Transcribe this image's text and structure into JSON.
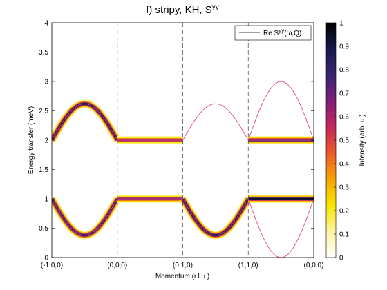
{
  "chart_data": {
    "type": "heatmap",
    "title": "f) stripy, KH, S",
    "title_superscript": "yy",
    "xlabel": "Momentum (r.l.u.)",
    "ylabel": "Energy transfer (meV)",
    "colorbar_label": "Intensity (arb. u.)",
    "ylim": [
      0,
      4
    ],
    "clim": [
      0,
      1
    ],
    "x_ticks": [
      "(-1,0,0)",
      "(0,0,0)",
      "(0,1,0)",
      "(1,1,0)",
      "(0,0,0)"
    ],
    "y_ticks": [
      "0",
      "0.5",
      "1",
      "1.5",
      "2",
      "2.5",
      "3",
      "3.5",
      "4"
    ],
    "colorbar_ticks": [
      "0",
      "0.1",
      "0.2",
      "0.3",
      "0.4",
      "0.5",
      "0.6",
      "0.7",
      "0.8",
      "0.9",
      "1"
    ],
    "legend": {
      "label": "Re S",
      "label_superscript": "yy",
      "label_suffix": "(ω,Q)",
      "placement": "top-right"
    },
    "colormap": [
      "#ffffff",
      "#fff3a0",
      "#f8e700",
      "#f7a300",
      "#ed5a2a",
      "#c6265c",
      "#7e1e78",
      "#3a2470",
      "#151a4a",
      "#000000"
    ],
    "line_color": "#e0457b",
    "segments": [
      {
        "from": "(-1,0,0)",
        "to": "(0,0,0)",
        "upper": {
          "start": 2.0,
          "peak": 2.62,
          "end": 2.0
        },
        "lower": {
          "start": 1.0,
          "min": 0.38,
          "end": 1.0
        },
        "upper_intensity": 0.95,
        "lower_intensity": 0.9
      },
      {
        "from": "(0,0,0)",
        "to": "(0,1,0)",
        "upper": {
          "start": 2.0,
          "peak": 2.0,
          "end": 2.0
        },
        "lower": {
          "start": 1.0,
          "min": 1.0,
          "end": 1.0
        },
        "upper_intensity": 0.7,
        "lower_intensity": 0.75
      },
      {
        "from": "(0,1,0)",
        "to": "(1,1,0)",
        "upper": {
          "start": 2.0,
          "peak": 2.62,
          "end": 2.0
        },
        "lower": {
          "start": 1.0,
          "min": 0.38,
          "end": 1.0
        },
        "upper_intensity": 0.0,
        "lower_intensity": 0.95
      },
      {
        "from": "(1,1,0)",
        "to": "(0,0,0)",
        "upper": {
          "start": 2.0,
          "peak": 3.0,
          "end": 2.0
        },
        "lower": {
          "start": 1.0,
          "min": 0.0,
          "end": 1.0
        },
        "upper_intensity": 0.0,
        "lower_intensity": 0.0,
        "flat_upper": 2.0,
        "flat_upper_intensity": 0.85,
        "flat_lower": 1.0,
        "flat_lower_intensity": 0.95
      }
    ]
  }
}
